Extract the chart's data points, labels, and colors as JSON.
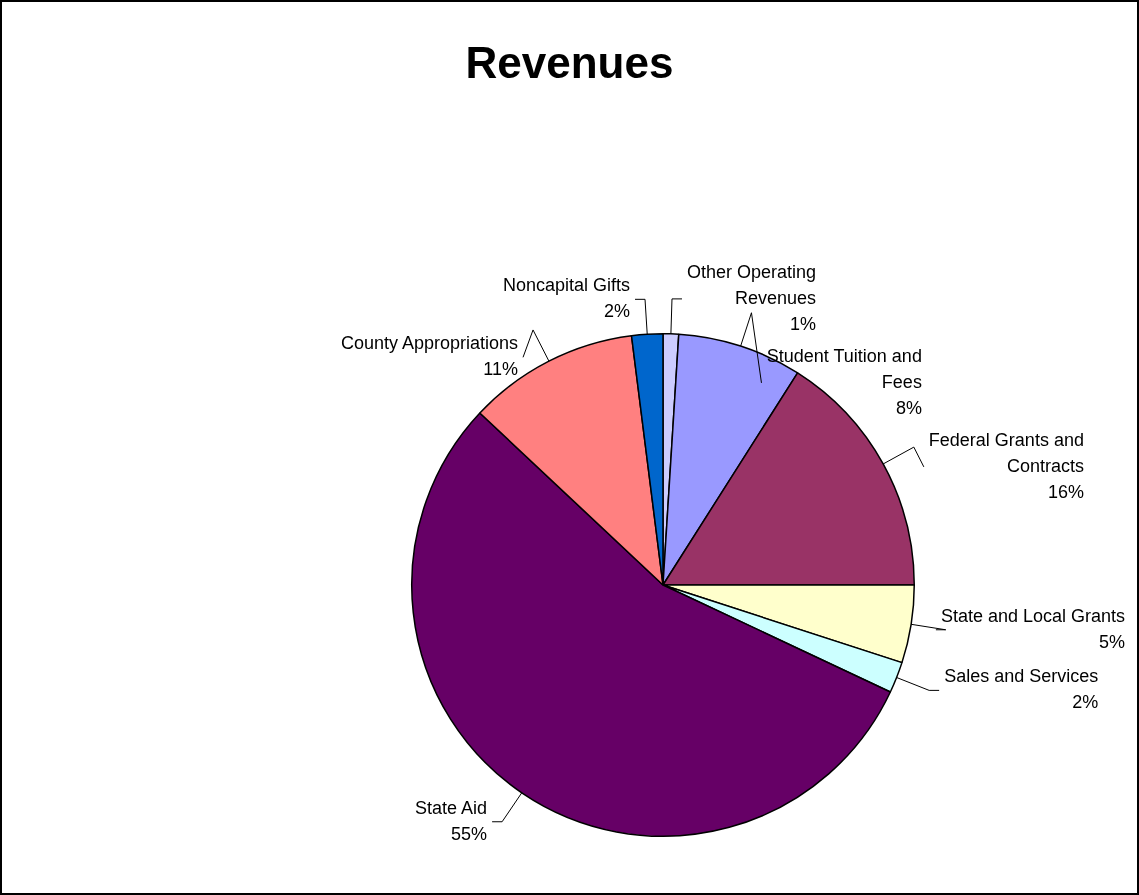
{
  "chart_data": {
    "type": "pie",
    "title": "Revenues",
    "categories": [
      "Other Operating Revenues",
      "Student Tuition and Fees",
      "Federal Grants and Contracts",
      "State and Local Grants",
      "Sales and Services",
      "State Aid",
      "County Appropriations",
      "Noncapital Gifts"
    ],
    "values": [
      1,
      8,
      16,
      5,
      2,
      55,
      11,
      2
    ],
    "value_labels": [
      "1%",
      "8%",
      "16%",
      "5%",
      "2%",
      "55%",
      "11%",
      "2%"
    ],
    "colors": [
      "#ccccff",
      "#9999ff",
      "#993366",
      "#ffffcc",
      "#ccffff",
      "#660066",
      "#ff8080",
      "#0066cc"
    ],
    "legend": false
  }
}
